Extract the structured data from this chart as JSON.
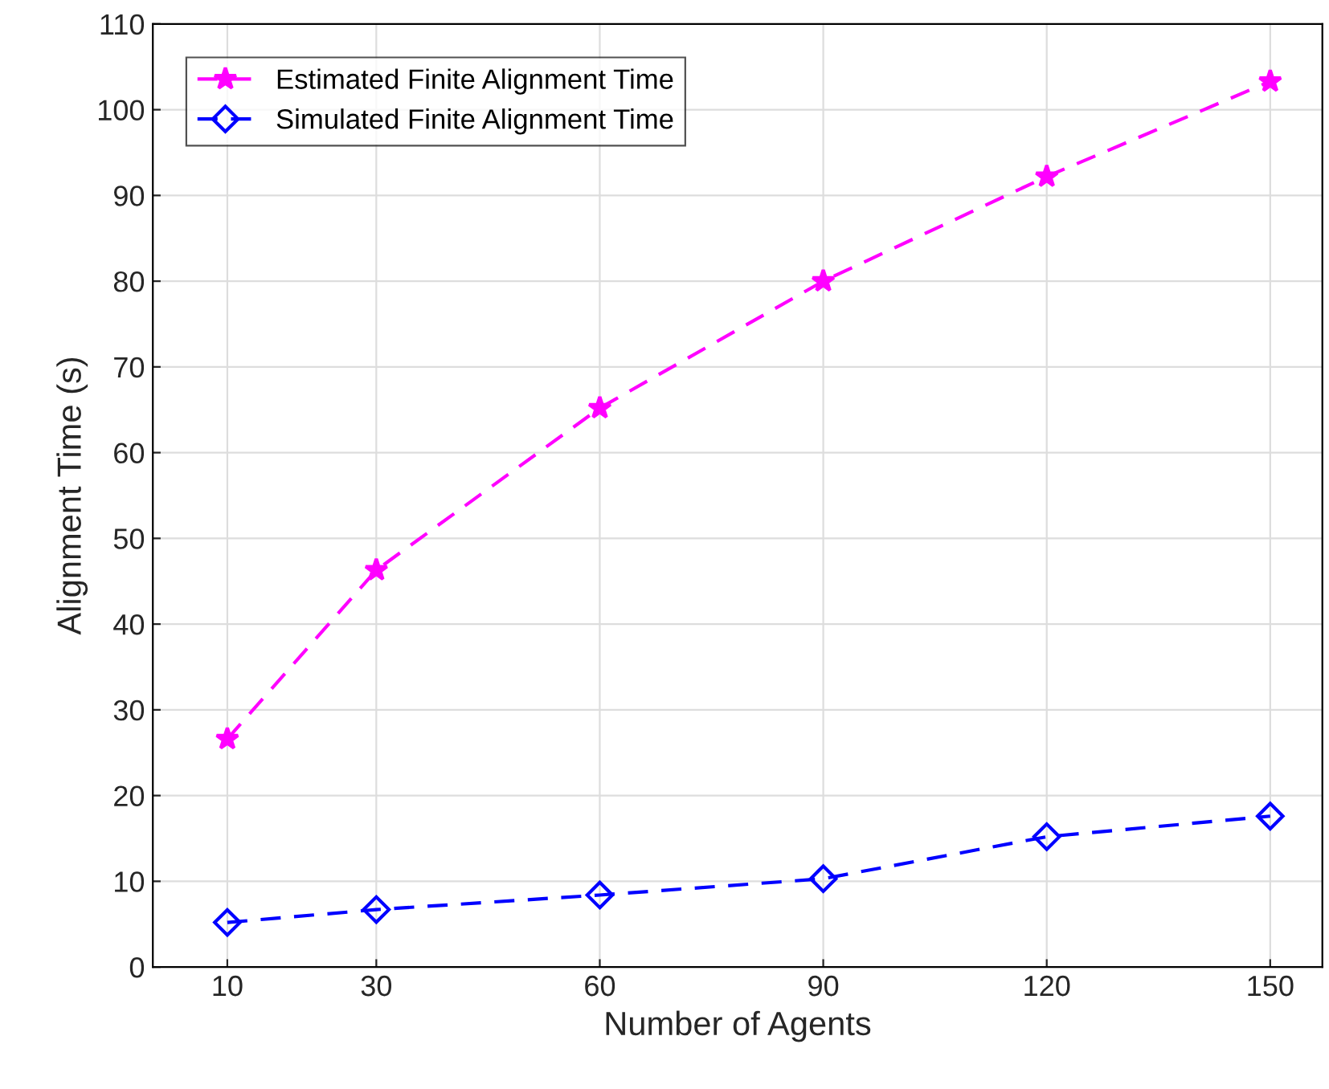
{
  "chart_data": {
    "type": "line",
    "xlabel": "Number of Agents",
    "ylabel": "Alignment Time (s)",
    "x": [
      10,
      30,
      60,
      90,
      120,
      150
    ],
    "series": [
      {
        "name": "Estimated Finite Alignment Time",
        "color": "#ff00ff",
        "marker": "star",
        "line_style": "dashed",
        "values": [
          26.6,
          46.3,
          65.2,
          80.0,
          92.2,
          103.3
        ]
      },
      {
        "name": "Simulated Finite Alignment Time",
        "color": "#0000ff",
        "marker": "diamond",
        "line_style": "dashed",
        "values": [
          5.2,
          6.7,
          8.4,
          10.3,
          15.2,
          17.6
        ]
      }
    ],
    "xlim": [
      0,
      157
    ],
    "xticks": [
      10,
      30,
      60,
      90,
      120,
      150
    ],
    "ylim": [
      0,
      110
    ],
    "yticks": [
      0,
      10,
      20,
      30,
      40,
      50,
      60,
      70,
      80,
      90,
      100,
      110
    ],
    "grid": true,
    "legend": "top left"
  }
}
